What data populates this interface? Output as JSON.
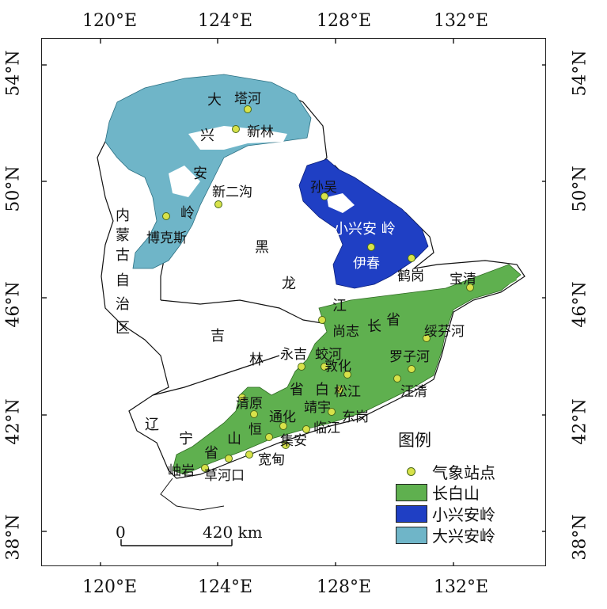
{
  "coords": {
    "top": [
      "120°E",
      "124°E",
      "128°E",
      "132°E"
    ],
    "bottom": [
      "120°E",
      "124°E",
      "128°E",
      "132°E"
    ],
    "left": [
      "54°N",
      "50°N",
      "46°N",
      "42°N",
      "38°N"
    ],
    "right": [
      "54°N",
      "50°N",
      "46°N",
      "42°N",
      "38°N"
    ]
  },
  "regions": {
    "daxinganling_chars": [
      "大",
      "兴",
      "安",
      "岭"
    ],
    "neimenggu_chars": [
      "内",
      "蒙",
      "古",
      "自",
      "治",
      "区"
    ],
    "heilongjiang_chars": [
      "黑",
      "龙",
      "江",
      "省"
    ],
    "jilin_chars": [
      "吉",
      "林",
      "省"
    ],
    "liaoning_chars": [
      "辽",
      "宁",
      "省"
    ],
    "changbaishan_chars": [
      "长",
      "白",
      "山"
    ],
    "xiaoxinganling": "小兴安 岭"
  },
  "stations": [
    "塔河",
    "新林",
    "新二沟",
    "博克斯",
    "孙吴",
    "伊春",
    "鹤岗",
    "宝清",
    "尚志",
    "绥芬河",
    "永吉",
    "蛟河",
    "罗子河",
    "敦化",
    "汪清",
    "松江",
    "清原",
    "通化",
    "靖宇",
    "东岗",
    "临江",
    "恒",
    "集安",
    "宽甸",
    "岫岩",
    "草河口"
  ],
  "legend": {
    "title": "图例",
    "items": [
      {
        "label": "气象站点",
        "type": "dot"
      },
      {
        "label": "长白山",
        "type": "swatch",
        "color": "#5fb04f"
      },
      {
        "label": "小兴安岭",
        "type": "swatch",
        "color": "#1f3fc4"
      },
      {
        "label": "大兴安岭",
        "type": "swatch",
        "color": "#6fb5c8"
      }
    ]
  },
  "scale": {
    "start": "0",
    "end": "420 km"
  },
  "colors": {
    "changbaishan": "#5fb04f",
    "xiaoxinganling": "#1f3fc4",
    "daxinganling": "#6fb5c8",
    "station": "#d8e24a"
  }
}
